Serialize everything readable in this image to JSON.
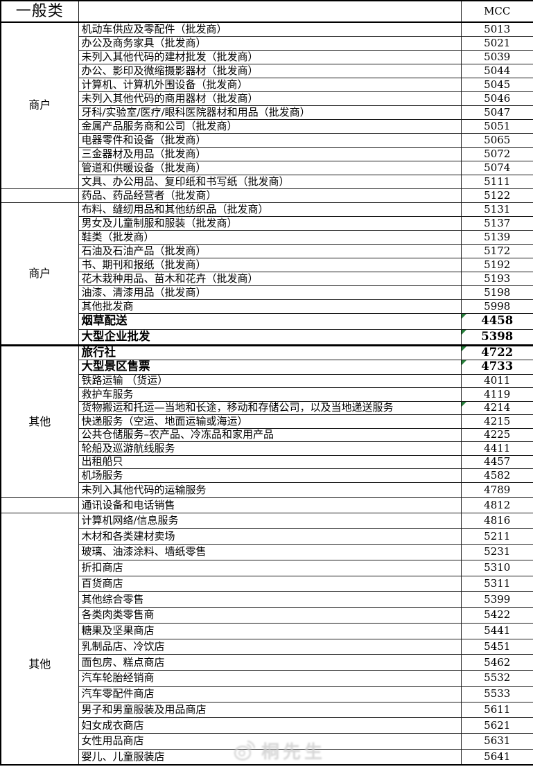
{
  "table": {
    "header": {
      "category": "一般类",
      "desc": "",
      "mcc": "MCC"
    },
    "left_cells": [
      {
        "label": "商户",
        "span": 12
      },
      {
        "label": "",
        "span": 1
      },
      {
        "label": "商户",
        "span": 10
      },
      {
        "label": "其他",
        "span": 11
      },
      {
        "label": "",
        "span": 1
      },
      {
        "label": "其他",
        "span": 16
      }
    ],
    "rows": [
      {
        "desc": "机动车供应及零配件（批发商）",
        "mcc": "5013"
      },
      {
        "desc": "办公及商务家具（批发商）",
        "mcc": "5021"
      },
      {
        "desc": "未列入其他代码的建材批发（批发商）",
        "mcc": "5039"
      },
      {
        "desc": "办公、影印及微缩摄影器材（批发商）",
        "mcc": "5044"
      },
      {
        "desc": "计算机、计算机外围设备（批发商）",
        "mcc": "5045"
      },
      {
        "desc": "未列入其他代码的商用器材（批发商）",
        "mcc": "5046"
      },
      {
        "desc": "牙科/实验室/医疗/眼科医院器材和用品（批发商）",
        "mcc": "5047"
      },
      {
        "desc": "金属产品服务商和公司（批发商）",
        "mcc": "5051"
      },
      {
        "desc": "电器零件和设备（批发商）",
        "mcc": "5065"
      },
      {
        "desc": "三金器材及用品（批发商）",
        "mcc": "5072"
      },
      {
        "desc": "管道和供暖设备（批发商）",
        "mcc": "5074"
      },
      {
        "desc": "文具、办公用品、复印纸和书写纸（批发商）",
        "mcc": "5111"
      },
      {
        "desc": "药品、药品经营者（批发商）",
        "mcc": "5122"
      },
      {
        "desc": "布料、缝纫用品和其他纺织品（批发商）",
        "mcc": "5131"
      },
      {
        "desc": "男女及儿童制服和服装（批发商）",
        "mcc": "5137"
      },
      {
        "desc": "鞋类（批发商）",
        "mcc": "5139"
      },
      {
        "desc": "石油及石油产品（批发商）",
        "mcc": "5172"
      },
      {
        "desc": "书、期刊和报纸（批发商）",
        "mcc": "5192"
      },
      {
        "desc": "花木栽种用品、苗木和花卉（批发商）",
        "mcc": "5193"
      },
      {
        "desc": "油漆、清漆用品（批发商）",
        "mcc": "5198"
      },
      {
        "desc": "其他批发商",
        "mcc": "5998"
      },
      {
        "desc": "烟草配送",
        "mcc": "4458",
        "bold": true,
        "marker": true
      },
      {
        "desc": "大型企业批发",
        "mcc": "5398",
        "bold": true,
        "marker": true
      },
      {
        "desc": "旅行社",
        "mcc": "4722",
        "bold": true,
        "marker": true,
        "section_start": true
      },
      {
        "desc": "大型景区售票",
        "mcc": "4733",
        "bold": true,
        "marker": true
      },
      {
        "desc": "铁路运输 （货运）",
        "mcc": "4011"
      },
      {
        "desc": "救护车服务",
        "mcc": "4119"
      },
      {
        "desc": "货物搬运和托运—当地和长途，移动和存储公司，以及当地递送服务",
        "mcc": "4214",
        "marker": true
      },
      {
        "desc": "快递服务（空运、地面运输或海运）",
        "mcc": "4215"
      },
      {
        "desc": "公共仓储服务–农产品、冷冻品和家用产品",
        "mcc": "4225"
      },
      {
        "desc": "轮船及巡游航线服务",
        "mcc": "4411"
      },
      {
        "desc": "出租船只",
        "mcc": "4457"
      },
      {
        "desc": "机场服务",
        "mcc": "4582"
      },
      {
        "desc": "未列入其他代码的运输服务",
        "mcc": "4789"
      },
      {
        "desc": "通讯设备和电话销售",
        "mcc": "4812"
      },
      {
        "desc": "计算机网络/信息服务",
        "mcc": "4816"
      },
      {
        "desc": "木材和各类建材卖场",
        "mcc": "5211"
      },
      {
        "desc": "玻璃、油漆涂料、墙纸零售",
        "mcc": "5231"
      },
      {
        "desc": "折扣商店",
        "mcc": "5310"
      },
      {
        "desc": "百货商店",
        "mcc": "5311"
      },
      {
        "desc": "其他综合零售",
        "mcc": "5399"
      },
      {
        "desc": "各类肉类零售商",
        "mcc": "5422"
      },
      {
        "desc": "糖果及坚果商店",
        "mcc": "5441"
      },
      {
        "desc": "乳制品店、冷饮店",
        "mcc": "5451"
      },
      {
        "desc": "面包房、糕点商店",
        "mcc": "5462"
      },
      {
        "desc": "汽车轮胎经销商",
        "mcc": "5532"
      },
      {
        "desc": "汽车零配件商店",
        "mcc": "5533"
      },
      {
        "desc": "男子和男童服装及用品商店",
        "mcc": "5611"
      },
      {
        "desc": "妇女成衣商店",
        "mcc": "5621"
      },
      {
        "desc": "女性用品商店",
        "mcc": "5631"
      },
      {
        "desc": "婴儿、儿童服装店",
        "mcc": "5641"
      }
    ]
  },
  "icons": {
    "cell_marker": "green-corner-marker",
    "watermark_logo": "weibo-logo"
  },
  "watermark": {
    "text": "桐先生"
  },
  "colors": {
    "marker_green": "#27803b",
    "border_black": "#1a1a1a",
    "watermark_gray": "#cfcfcf",
    "background": "#ffffff"
  }
}
